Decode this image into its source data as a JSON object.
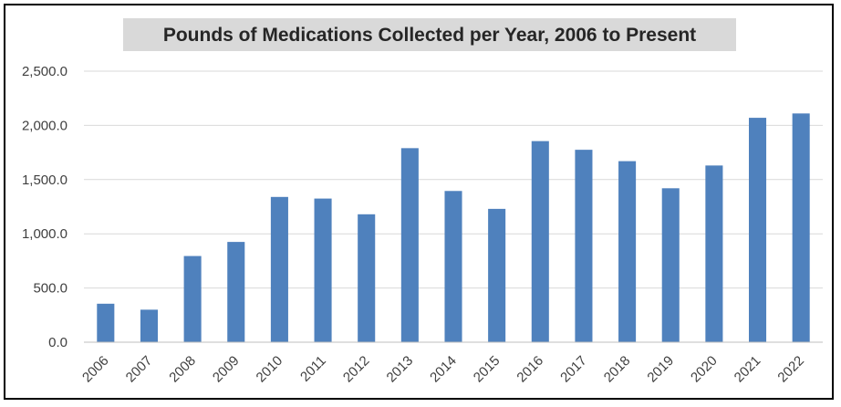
{
  "chart_data": {
    "type": "bar",
    "title": "Pounds of Medications Collected per Year, 2006 to Present",
    "xlabel": "",
    "ylabel": "",
    "categories": [
      "2006",
      "2007",
      "2008",
      "2009",
      "2010",
      "2011",
      "2012",
      "2013",
      "2014",
      "2015",
      "2016",
      "2017",
      "2018",
      "2019",
      "2020",
      "2021",
      "2022"
    ],
    "values": [
      355,
      300,
      795,
      925,
      1340,
      1325,
      1180,
      1790,
      1395,
      1230,
      1855,
      1775,
      1670,
      1420,
      1630,
      2070,
      2110
    ],
    "ylim": [
      0,
      2500
    ],
    "yticks": [
      0,
      500,
      1000,
      1500,
      2000,
      2500
    ],
    "ytick_labels": [
      "0.0",
      "500.0",
      "1,000.0",
      "1,500.0",
      "2,000.0",
      "2,500.0"
    ],
    "grid": true,
    "legend": "none",
    "colors": {
      "bar": "#4F81BD",
      "grid": "#D9D9D9",
      "axis": "#BFBFBF",
      "title_background": "#D9D9D9",
      "text": "#404040"
    }
  }
}
